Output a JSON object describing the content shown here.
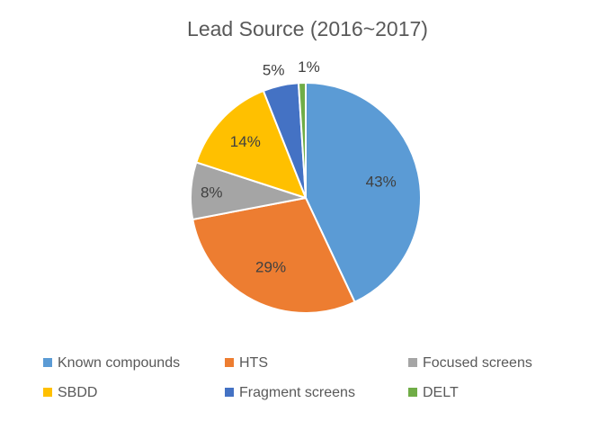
{
  "chart_data": {
    "type": "pie",
    "title": "Lead Source (2016~2017)",
    "categories": [
      "Known compounds",
      "HTS",
      "Focused screens",
      "SBDD",
      "Fragment screens",
      "DELT"
    ],
    "values": [
      43,
      29,
      8,
      14,
      5,
      1
    ],
    "labels": [
      "43%",
      "29%",
      "8%",
      "14%",
      "5%",
      "1%"
    ],
    "colors": [
      "#5b9bd5",
      "#ed7d31",
      "#a5a5a5",
      "#ffc000",
      "#4472c4",
      "#70ad47"
    ],
    "legend_position": "bottom"
  }
}
